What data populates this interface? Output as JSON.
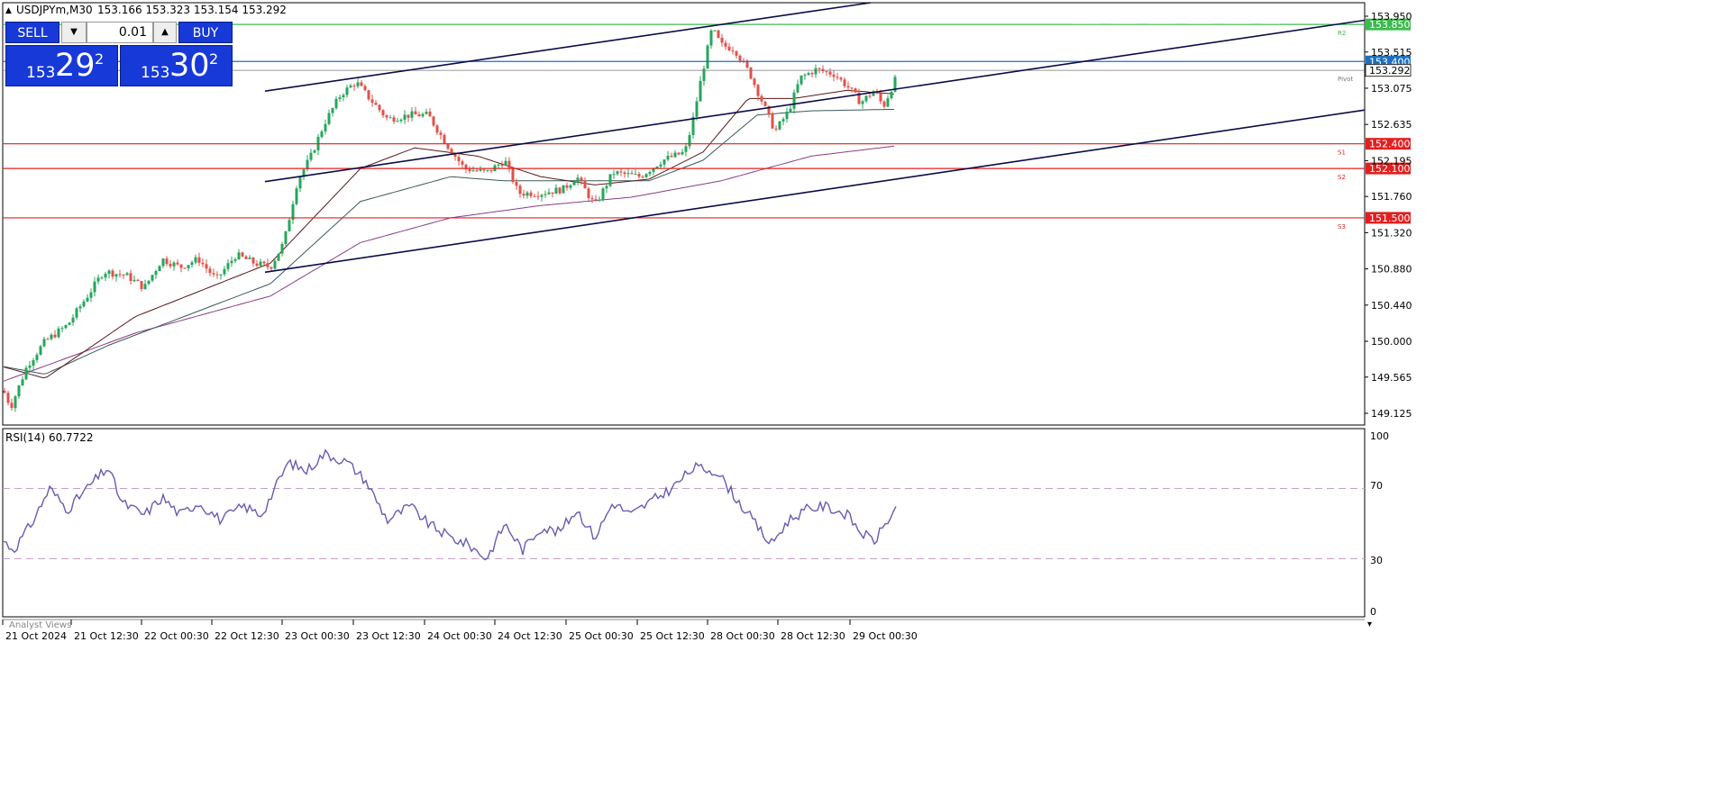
{
  "header": {
    "symbol": "USDJPYm,M30",
    "ohlc": "153.166 153.323 153.154 153.292"
  },
  "trade_panel": {
    "sell_label": "SELL",
    "buy_label": "BUY",
    "lot": "0.01",
    "sell_prefix": "153",
    "sell_big": "29",
    "sell_sup": "2",
    "buy_prefix": "153",
    "buy_big": "30",
    "buy_sup": "2"
  },
  "price_axis": {
    "labels": [
      "153.950",
      "153.515",
      "153.075",
      "152.635",
      "152.195",
      "151.760",
      "151.320",
      "150.880",
      "150.440",
      "150.000",
      "149.565",
      "149.125"
    ]
  },
  "levels": [
    {
      "name": "r2",
      "price": 153.85,
      "label": "153.850",
      "tag": "R2",
      "color": "#3dba4f"
    },
    {
      "name": "current",
      "price": 153.4,
      "label": "153.400",
      "tag": "",
      "color": "#1e6fbf"
    },
    {
      "name": "pivot",
      "price": 153.292,
      "label": "153.292",
      "tag": "Pivot",
      "color": "#777777"
    },
    {
      "name": "s1",
      "price": 152.4,
      "label": "152.400",
      "tag": "S1",
      "color": "#e02020"
    },
    {
      "name": "s2",
      "price": 152.1,
      "label": "152.100",
      "tag": "S2",
      "color": "#e02020"
    },
    {
      "name": "s3",
      "price": 151.5,
      "label": "151.500",
      "tag": "S3",
      "color": "#e02020"
    }
  ],
  "rsi": {
    "title": "RSI(14) 60.7722",
    "levels": [
      "100",
      "70",
      "30",
      "0"
    ]
  },
  "time_axis": {
    "labels": [
      "21 Oct 2024",
      "21 Oct 12:30",
      "22 Oct 00:30",
      "22 Oct 12:30",
      "23 Oct 00:30",
      "23 Oct 12:30",
      "24 Oct 00:30",
      "24 Oct 12:30",
      "25 Oct 00:30",
      "25 Oct 12:30",
      "28 Oct 00:30",
      "28 Oct 12:30",
      "29 Oct 00:30"
    ]
  },
  "analyst_tab": "Analyst Views",
  "chart_data": {
    "type": "line",
    "title": "",
    "y_range": [
      149.0,
      154.0
    ],
    "rsi_range": [
      0,
      100
    ],
    "close_anchors": [
      [
        0,
        149.5
      ],
      [
        12,
        149.2
      ],
      [
        30,
        149.7
      ],
      [
        50,
        150.0
      ],
      [
        75,
        150.2
      ],
      [
        100,
        150.6
      ],
      [
        115,
        150.85
      ],
      [
        140,
        150.8
      ],
      [
        160,
        150.65
      ],
      [
        180,
        151.0
      ],
      [
        200,
        150.9
      ],
      [
        220,
        151.0
      ],
      [
        240,
        150.75
      ],
      [
        262,
        151.05
      ],
      [
        282,
        150.95
      ],
      [
        300,
        150.9
      ],
      [
        315,
        151.2
      ],
      [
        330,
        151.95
      ],
      [
        345,
        152.25
      ],
      [
        360,
        152.65
      ],
      [
        378,
        153.0
      ],
      [
        395,
        153.15
      ],
      [
        410,
        152.95
      ],
      [
        430,
        152.7
      ],
      [
        455,
        152.75
      ],
      [
        475,
        152.75
      ],
      [
        495,
        152.4
      ],
      [
        515,
        152.1
      ],
      [
        540,
        152.05
      ],
      [
        560,
        152.2
      ],
      [
        575,
        151.8
      ],
      [
        600,
        151.8
      ],
      [
        625,
        151.85
      ],
      [
        640,
        152.0
      ],
      [
        660,
        151.65
      ],
      [
        680,
        152.05
      ],
      [
        710,
        152.0
      ],
      [
        735,
        152.2
      ],
      [
        760,
        152.3
      ],
      [
        768,
        152.65
      ],
      [
        778,
        153.2
      ],
      [
        790,
        153.8
      ],
      [
        800,
        153.6
      ],
      [
        815,
        153.55
      ],
      [
        832,
        153.25
      ],
      [
        848,
        152.85
      ],
      [
        860,
        152.55
      ],
      [
        875,
        152.8
      ],
      [
        888,
        153.2
      ],
      [
        905,
        153.3
      ],
      [
        925,
        153.25
      ],
      [
        940,
        153.1
      ],
      [
        955,
        152.9
      ],
      [
        970,
        153.05
      ],
      [
        980,
        152.85
      ],
      [
        990,
        153.1
      ],
      [
        998,
        153.29
      ]
    ],
    "rsi_anchors": [
      [
        0,
        42
      ],
      [
        15,
        35
      ],
      [
        35,
        50
      ],
      [
        55,
        70
      ],
      [
        75,
        58
      ],
      [
        100,
        72
      ],
      [
        120,
        82
      ],
      [
        135,
        62
      ],
      [
        160,
        55
      ],
      [
        180,
        65
      ],
      [
        200,
        55
      ],
      [
        220,
        62
      ],
      [
        245,
        52
      ],
      [
        270,
        60
      ],
      [
        290,
        55
      ],
      [
        320,
        85
      ],
      [
        340,
        80
      ],
      [
        360,
        90
      ],
      [
        385,
        85
      ],
      [
        405,
        75
      ],
      [
        430,
        52
      ],
      [
        455,
        60
      ],
      [
        475,
        50
      ],
      [
        500,
        42
      ],
      [
        520,
        38
      ],
      [
        540,
        30
      ],
      [
        560,
        50
      ],
      [
        580,
        35
      ],
      [
        600,
        48
      ],
      [
        620,
        45
      ],
      [
        640,
        58
      ],
      [
        660,
        42
      ],
      [
        680,
        62
      ],
      [
        700,
        55
      ],
      [
        720,
        62
      ],
      [
        745,
        70
      ],
      [
        770,
        82
      ],
      [
        795,
        80
      ],
      [
        820,
        62
      ],
      [
        835,
        52
      ],
      [
        855,
        38
      ],
      [
        875,
        52
      ],
      [
        895,
        58
      ],
      [
        915,
        60
      ],
      [
        940,
        55
      ],
      [
        955,
        45
      ],
      [
        970,
        40
      ],
      [
        985,
        52
      ],
      [
        998,
        60.77
      ]
    ],
    "ma_slow_anchors": [
      [
        0,
        149.5
      ],
      [
        50,
        149.7
      ],
      [
        150,
        150.1
      ],
      [
        300,
        150.55
      ],
      [
        400,
        151.2
      ],
      [
        500,
        151.5
      ],
      [
        600,
        151.65
      ],
      [
        700,
        151.75
      ],
      [
        800,
        151.95
      ],
      [
        900,
        152.25
      ],
      [
        998,
        152.38
      ]
    ],
    "ma_mid_anchors": [
      [
        0,
        149.7
      ],
      [
        50,
        149.6
      ],
      [
        120,
        149.95
      ],
      [
        300,
        150.7
      ],
      [
        400,
        151.7
      ],
      [
        500,
        152.0
      ],
      [
        560,
        151.95
      ],
      [
        640,
        151.95
      ],
      [
        720,
        151.95
      ],
      [
        780,
        152.2
      ],
      [
        840,
        152.75
      ],
      [
        900,
        152.8
      ],
      [
        998,
        152.82
      ]
    ],
    "ma_fast_anchors": [
      [
        0,
        149.7
      ],
      [
        50,
        149.55
      ],
      [
        150,
        150.3
      ],
      [
        300,
        150.95
      ],
      [
        400,
        152.1
      ],
      [
        460,
        152.35
      ],
      [
        530,
        152.25
      ],
      [
        600,
        152.0
      ],
      [
        660,
        151.9
      ],
      [
        720,
        151.97
      ],
      [
        780,
        152.3
      ],
      [
        830,
        152.95
      ],
      [
        880,
        152.95
      ],
      [
        940,
        153.05
      ],
      [
        998,
        153.0
      ]
    ],
    "channels": [
      {
        "name": "upper",
        "from": [
          294,
          153.04
        ],
        "to": [
          1520,
          155.0
        ]
      },
      {
        "name": "middle",
        "from": [
          294,
          151.94
        ],
        "to": [
          1520,
          153.91
        ]
      },
      {
        "name": "lower",
        "from": [
          294,
          150.84
        ],
        "to": [
          1520,
          152.82
        ]
      }
    ]
  }
}
